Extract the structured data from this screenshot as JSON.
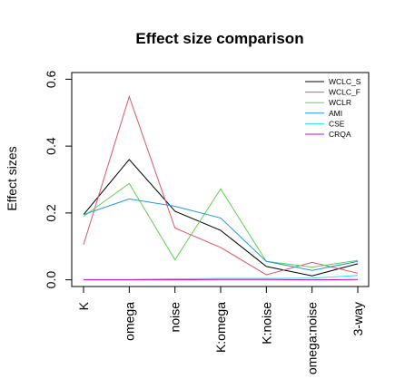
{
  "chart_data": {
    "type": "line",
    "title": "Effect size comparison",
    "xlabel": "",
    "ylabel": "Effect sizes",
    "categories": [
      "K",
      "omega",
      "noise",
      "K:omega",
      "K:noise",
      "omega:noise",
      "3-way"
    ],
    "ylim": [
      -0.02,
      0.62
    ],
    "yticks": [
      "0.0",
      "0.2",
      "0.4",
      "0.6"
    ],
    "grid": false,
    "legend_position": "top-right",
    "series": [
      {
        "name": "WCLC_S",
        "color": "#000000",
        "values": [
          0.195,
          0.36,
          0.205,
          0.148,
          0.04,
          0.012,
          0.048
        ]
      },
      {
        "name": "WCLC_F",
        "color": "#DF536B",
        "values": [
          0.105,
          0.548,
          0.155,
          0.097,
          0.015,
          0.052,
          0.02
        ]
      },
      {
        "name": "WCLR",
        "color": "#61D04F",
        "values": [
          0.19,
          0.288,
          0.06,
          0.272,
          0.055,
          0.038,
          0.058
        ]
      },
      {
        "name": "AMI",
        "color": "#2297E6",
        "values": [
          0.195,
          0.242,
          0.22,
          0.185,
          0.055,
          0.028,
          0.055
        ]
      },
      {
        "name": "CSE",
        "color": "#28E2E5",
        "values": [
          0.001,
          0.001,
          0.003,
          0.004,
          0.004,
          0.005,
          0.013
        ]
      },
      {
        "name": "CRQA",
        "color": "#CD0BBC",
        "values": [
          0.0,
          0.0,
          0.0,
          0.001,
          0.001,
          0.0,
          0.001
        ]
      }
    ]
  }
}
